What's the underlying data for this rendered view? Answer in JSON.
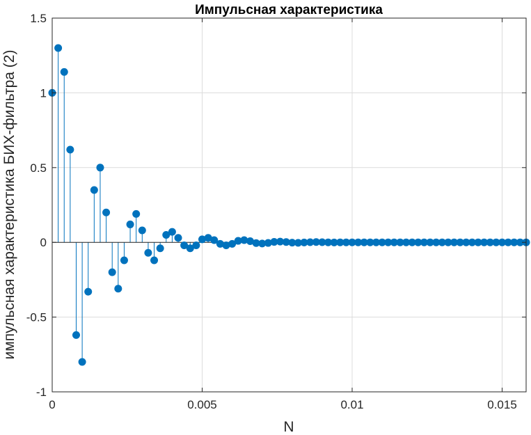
{
  "chart_data": {
    "type": "stem",
    "title": "Импульсная характеристика",
    "xlabel": "N",
    "ylabel": "импульсная характеристика БИХ-фильтра (2)",
    "xlim": [
      0,
      0.0158
    ],
    "ylim": [
      -1,
      1.5
    ],
    "xticks": [
      0,
      0.005,
      0.01,
      0.015
    ],
    "xtick_labels": [
      "0",
      "0.005",
      "0.01",
      "0.015"
    ],
    "yticks": [
      -1,
      -0.5,
      0,
      0.5,
      1,
      1.5
    ],
    "ytick_labels": [
      "-1",
      "-0.5",
      "0",
      "0.5",
      "1",
      "1.5"
    ],
    "grid": true,
    "color": "#0072bd",
    "x_step": 0.0002,
    "values": [
      1.0,
      1.3,
      1.14,
      0.62,
      -0.62,
      -0.8,
      -0.33,
      0.35,
      0.5,
      0.2,
      -0.2,
      -0.31,
      -0.12,
      0.12,
      0.19,
      0.08,
      -0.07,
      -0.12,
      -0.04,
      0.05,
      0.07,
      0.03,
      -0.02,
      -0.04,
      -0.02,
      0.02,
      0.03,
      0.015,
      -0.01,
      -0.02,
      -0.01,
      0.01,
      0.015,
      0.008,
      -0.005,
      -0.008,
      -0.004,
      0.003,
      0.005,
      0.002,
      -0.002,
      -0.003,
      -0.001,
      0.001,
      0.002,
      0.001,
      0,
      -0.001,
      0,
      0,
      0,
      0,
      0,
      0,
      0,
      0,
      0,
      0,
      0,
      0,
      0,
      0,
      0,
      0,
      0,
      0,
      0,
      0,
      0,
      0,
      0,
      0,
      0,
      0,
      0,
      0,
      0,
      0,
      0,
      0
    ]
  }
}
